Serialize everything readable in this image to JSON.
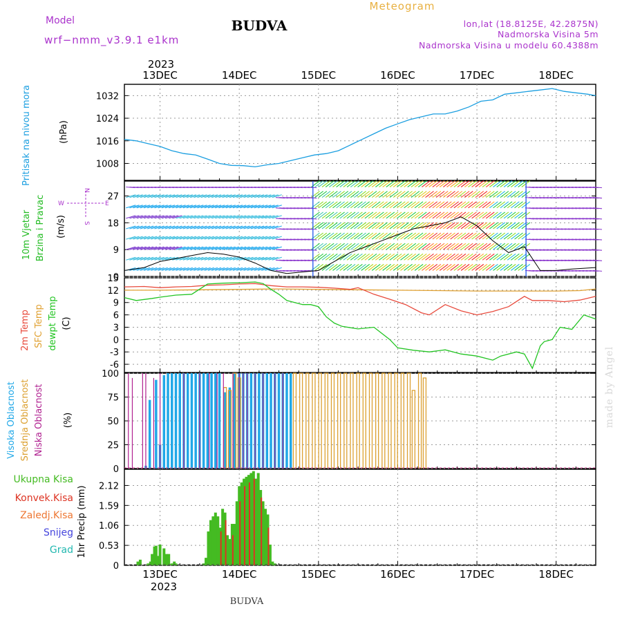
{
  "header": {
    "model_label": "Model",
    "model_name": "wrf−nmm_v3.9.1  e1km",
    "title": "BUDVA",
    "meteogram": "Meteogram",
    "lonlat": "lon,lat (18.8125E, 42.2875N)",
    "elevation": "Nadmorska Visina 5m",
    "model_elevation": "Nadmorska Visina u modelu 60.4388m",
    "credit": "made by Angel",
    "footer_title": "BUDVA"
  },
  "time_axis": {
    "year": "2023",
    "days": [
      "13DEC",
      "14DEC",
      "15DEC",
      "16DEC",
      "17DEC",
      "18DEC"
    ],
    "day_numbers": [
      13,
      14,
      15,
      16,
      17,
      18
    ],
    "start_day": 12.55,
    "end_day": 18.5
  },
  "colors": {
    "pressure": "#1a9ee0",
    "t2m": "#e84a3c",
    "tsfc": "#e0a030",
    "dewpt": "#22c422",
    "high_cloud": "#20a8e8",
    "mid_cloud": "#dca030",
    "low_cloud": "#b02090",
    "total_rain": "#44bb22",
    "conv_rain": "#dd3322",
    "snow": "#4444dd",
    "grad": "#22b8b0",
    "wind_label": "#22bb22",
    "compass": "#aa33cc"
  },
  "panels": {
    "pressure": {
      "ylabel": "Pritisak na nivou mora",
      "unit": "(hPa)",
      "ticks": [
        "1008",
        "1016",
        "1024",
        "1032"
      ]
    },
    "wind": {
      "ylabel_1": "10m Vjetar",
      "ylabel_2": "Brzina i Pravac",
      "unit": "(m/s)",
      "ticks": [
        "0",
        "9",
        "18",
        "27"
      ],
      "compass_n": "N",
      "compass_w": "W",
      "compass_e": "E",
      "compass_s": "S"
    },
    "temp": {
      "ylabel_1": "2m Temp",
      "ylabel_2": "SFC Temp",
      "ylabel_3": "dewpt Temp",
      "unit": "(C)",
      "ticks": [
        "15",
        "12",
        "9",
        "6",
        "3",
        "0",
        "-3",
        "-6"
      ]
    },
    "cloud": {
      "ylabel_1": "Visoka Oblacnost",
      "ylabel_2": "Srednja Oblacnost",
      "ylabel_3": "Niska Oblacnost",
      "unit": "(%)",
      "ticks": [
        "0",
        "25",
        "50",
        "75",
        "100"
      ]
    },
    "precip": {
      "ylabel": "1hr Precip (mm)",
      "ticks": [
        "0",
        "0.53",
        "1.06",
        "1.59",
        "2.12"
      ],
      "legend": [
        "Ukupna Kisa",
        "Konvek.Kisa",
        "Zaledj.Kisa",
        "Snijeg",
        "Grad"
      ]
    }
  },
  "chart_data": [
    {
      "type": "line",
      "title": "Pritisak na nivou mora",
      "ylabel": "(hPa)",
      "ylim": [
        1002,
        1036
      ],
      "series": [
        {
          "name": "Pritisak na nivou mora",
          "x": [
            12.55,
            12.7,
            12.85,
            13.0,
            13.15,
            13.3,
            13.45,
            13.6,
            13.75,
            13.9,
            14.05,
            14.2,
            14.35,
            14.5,
            14.65,
            14.8,
            14.95,
            15.1,
            15.25,
            15.4,
            15.55,
            15.7,
            15.85,
            16.0,
            16.15,
            16.3,
            16.45,
            16.6,
            16.75,
            16.9,
            17.05,
            17.2,
            17.35,
            17.5,
            17.65,
            17.8,
            17.95,
            18.1,
            18.25,
            18.4,
            18.5
          ],
          "y": [
            1016.5,
            1016.0,
            1015.0,
            1014.0,
            1012.5,
            1011.5,
            1011.0,
            1009.5,
            1008.0,
            1007.3,
            1007.2,
            1006.8,
            1007.5,
            1008.0,
            1009.0,
            1010.0,
            1011.0,
            1011.5,
            1012.5,
            1014.5,
            1016.5,
            1018.5,
            1020.5,
            1022.0,
            1023.5,
            1024.5,
            1025.5,
            1025.5,
            1026.5,
            1028.0,
            1030.0,
            1030.5,
            1032.5,
            1033.0,
            1033.5,
            1034.0,
            1034.5,
            1033.5,
            1033.0,
            1032.5,
            1032.0
          ]
        }
      ]
    },
    {
      "type": "line",
      "title": "10m Vjetar Brzina i Pravac",
      "ylabel": "(m/s)",
      "ylim": [
        0,
        32
      ],
      "series": [
        {
          "name": "",
          "x": [
            12.55,
            12.8,
            13.0,
            13.2,
            13.4,
            13.6,
            13.8,
            14.0,
            14.2,
            14.4,
            14.6,
            14.8,
            15.0,
            15.2,
            15.4,
            15.6,
            15.8,
            16.0,
            16.2,
            16.4,
            16.6,
            16.8,
            17.0,
            17.2,
            17.4,
            17.6,
            17.8,
            18.0,
            18.2,
            18.5
          ],
          "y": [
            2,
            3,
            5,
            6,
            7,
            8,
            7.5,
            6.5,
            4.5,
            2,
            1,
            1.5,
            2,
            5,
            8,
            10,
            12,
            14,
            16,
            17,
            18,
            20,
            17,
            12,
            8,
            10,
            2,
            2,
            2.5,
            3
          ]
        }
      ]
    },
    {
      "type": "line",
      "title": "2m Temp / SFC Temp / dewpt Temp",
      "ylabel": "(C)",
      "ylim": [
        -8,
        15
      ],
      "series": [
        {
          "name": "2m Temp",
          "x": [
            12.55,
            12.8,
            13.0,
            13.2,
            13.4,
            13.6,
            13.8,
            14.0,
            14.2,
            14.4,
            14.6,
            14.8,
            15.0,
            15.2,
            15.4,
            15.5,
            15.7,
            15.9,
            16.1,
            16.3,
            16.4,
            16.6,
            16.8,
            17.0,
            17.2,
            17.4,
            17.6,
            17.7,
            17.9,
            18.1,
            18.3,
            18.5
          ],
          "y": [
            12.8,
            12.9,
            12.6,
            12.8,
            12.9,
            13.2,
            13.3,
            13.5,
            13.6,
            13.1,
            12.8,
            12.8,
            12.7,
            12.5,
            12.2,
            12.6,
            11.0,
            9.8,
            8.5,
            6.5,
            6.0,
            8.5,
            7.0,
            6.0,
            6.8,
            8.0,
            10.5,
            9.5,
            9.5,
            9.2,
            9.6,
            10.5
          ]
        },
        {
          "name": "SFC Temp",
          "x": [
            12.55,
            13.0,
            13.5,
            14.0,
            14.5,
            15.0,
            15.5,
            16.0,
            16.5,
            17.0,
            17.5,
            18.0,
            18.3,
            18.5
          ],
          "y": [
            12.0,
            12.0,
            12.1,
            12.2,
            12.3,
            12.2,
            12.1,
            12.0,
            11.9,
            11.8,
            11.8,
            11.8,
            11.9,
            12.3
          ]
        },
        {
          "name": "dewpt Temp",
          "x": [
            12.55,
            12.7,
            12.9,
            13.0,
            13.2,
            13.4,
            13.6,
            13.8,
            14.0,
            14.2,
            14.3,
            14.4,
            14.5,
            14.6,
            14.8,
            14.9,
            15.0,
            15.1,
            15.2,
            15.3,
            15.5,
            15.7,
            15.9,
            16.0,
            16.2,
            16.4,
            16.6,
            16.8,
            17.0,
            17.2,
            17.3,
            17.5,
            17.6,
            17.7,
            17.8,
            17.85,
            17.95,
            18.05,
            18.2,
            18.35,
            18.5
          ],
          "y": [
            10.2,
            9.5,
            10.0,
            10.3,
            10.8,
            11.0,
            13.5,
            13.7,
            13.8,
            14.0,
            13.6,
            12.2,
            11.0,
            9.5,
            8.5,
            8.5,
            8.0,
            5.5,
            4.0,
            3.2,
            2.6,
            3.0,
            0.0,
            -2.0,
            -2.6,
            -3.0,
            -2.5,
            -3.5,
            -4.0,
            -5.0,
            -4.0,
            -3.0,
            -3.5,
            -7.0,
            -1.5,
            -0.5,
            0.0,
            3.0,
            2.5,
            6.0,
            5.0
          ]
        }
      ]
    },
    {
      "type": "bar",
      "title": "Visoka / Srednja / Niska Oblacnost",
      "ylabel": "(%)",
      "ylim": [
        0,
        100
      ],
      "series": [
        {
          "name": "Visoka Oblacnost",
          "x": [
            12.82,
            12.87,
            12.95,
            13.0,
            13.05,
            13.1,
            13.15,
            13.2,
            13.25,
            13.3,
            13.35,
            13.4,
            13.45,
            13.5,
            13.55,
            13.6,
            13.65,
            13.7,
            13.75,
            13.82,
            13.88,
            13.94,
            14.0,
            14.05,
            14.1,
            14.15,
            14.2,
            14.25,
            14.3,
            14.35,
            14.4,
            14.45,
            14.5,
            14.55,
            14.6,
            14.65
          ],
          "values": [
            3,
            72,
            93,
            25,
            98,
            100,
            100,
            100,
            100,
            100,
            100,
            100,
            100,
            100,
            100,
            100,
            100,
            100,
            100,
            80,
            85,
            100,
            100,
            100,
            100,
            100,
            100,
            100,
            100,
            100,
            100,
            100,
            100,
            100,
            100,
            100
          ]
        },
        {
          "name": "Srednja Oblacnost",
          "x": [
            13.82,
            13.88,
            13.94,
            14.0,
            14.7,
            14.78,
            14.86,
            14.94,
            15.02,
            15.1,
            15.18,
            15.26,
            15.34,
            15.42,
            15.5,
            15.58,
            15.66,
            15.74,
            15.82,
            15.9,
            15.98,
            16.06,
            16.14,
            16.2,
            16.28,
            16.34
          ],
          "values": [
            85,
            82,
            100,
            95,
            100,
            100,
            100,
            100,
            100,
            100,
            100,
            100,
            100,
            100,
            100,
            100,
            100,
            100,
            100,
            100,
            100,
            100,
            100,
            82,
            100,
            95
          ]
        },
        {
          "name": "Niska Oblacnost",
          "x": [
            12.6,
            12.65,
            12.78,
            12.82,
            12.92,
            13.0,
            13.3,
            13.5,
            13.62,
            13.72,
            13.8,
            13.92,
            14.0,
            14.05,
            14.1,
            14.2,
            14.3,
            14.45,
            14.55
          ],
          "values": [
            100,
            95,
            100,
            100,
            95,
            100,
            100,
            100,
            100,
            100,
            100,
            100,
            100,
            100,
            100,
            100,
            100,
            100,
            100
          ]
        }
      ]
    },
    {
      "type": "bar",
      "title": "1hr Precip",
      "ylabel": "1hr Precip (mm)",
      "ylim": [
        0,
        2.55
      ],
      "series": [
        {
          "name": "Ukupna Kisa",
          "x": [
            12.72,
            12.75,
            12.85,
            12.88,
            12.9,
            12.93,
            12.95,
            12.98,
            13.0,
            13.05,
            13.08,
            13.11,
            13.15,
            13.18,
            13.2,
            13.55,
            13.58,
            13.61,
            13.64,
            13.67,
            13.7,
            13.73,
            13.76,
            13.79,
            13.82,
            13.85,
            13.88,
            13.91,
            13.94,
            13.97,
            14.0,
            14.03,
            14.06,
            14.09,
            14.12,
            14.15,
            14.18,
            14.21,
            14.24,
            14.27,
            14.3,
            14.33,
            14.36,
            14.39,
            14.42,
            14.45
          ],
          "values": [
            0.1,
            0.15,
            0.05,
            0.1,
            0.3,
            0.5,
            0.52,
            0.25,
            0.55,
            0.45,
            0.3,
            0.3,
            0.05,
            0.1,
            0.05,
            0.05,
            0.2,
            0.9,
            1.2,
            1.3,
            1.4,
            1.3,
            1.0,
            1.5,
            1.4,
            0.8,
            0.7,
            1.1,
            1.1,
            1.7,
            2.1,
            2.2,
            2.3,
            2.35,
            2.4,
            2.45,
            2.5,
            2.3,
            2.45,
            2.0,
            1.7,
            1.5,
            1.35,
            0.55,
            0.1,
            0.05
          ]
        },
        {
          "name": "Konvek.Kisa",
          "x": [
            13.76,
            13.82,
            13.91,
            14.0,
            14.06,
            14.12,
            14.18,
            14.27,
            14.36
          ],
          "values": [
            0.9,
            1.2,
            0.8,
            1.7,
            2.1,
            2.2,
            2.3,
            1.8,
            1.0
          ]
        }
      ]
    }
  ]
}
